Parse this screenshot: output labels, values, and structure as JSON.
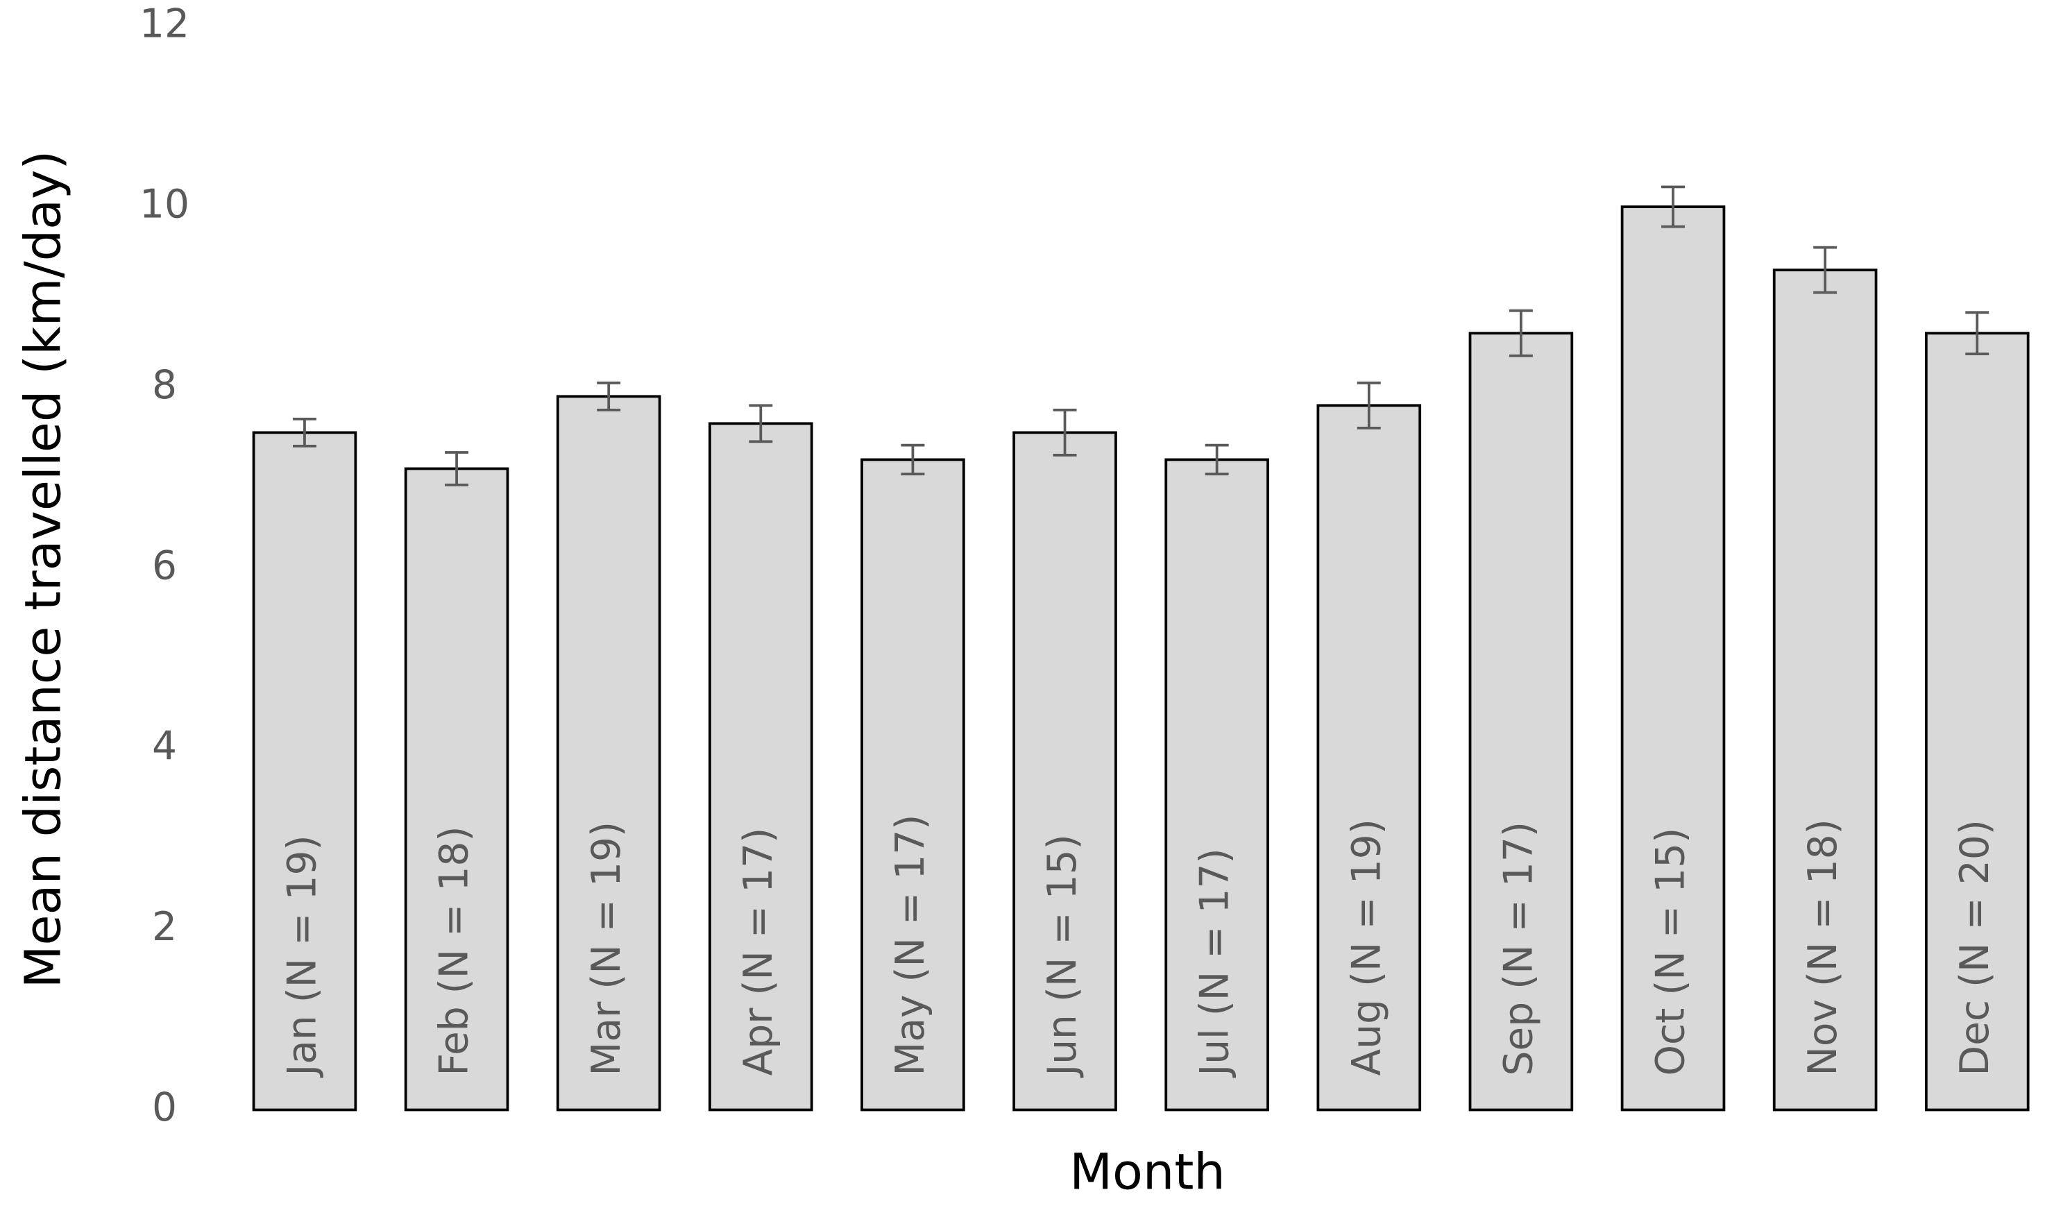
{
  "chart_data": {
    "type": "bar",
    "x_label": "Month",
    "y_label": "Mean distance travelled (km/day)",
    "categories": [
      "Jan (N = 19)",
      "Feb (N = 18)",
      "Mar (N = 19)",
      "Apr (N = 17)",
      "May (N = 17)",
      "Jun (N = 15)",
      "Jul (N = 17)",
      "Aug (N = 19)",
      "Sep (N = 17)",
      "Oct (N = 15)",
      "Nov (N = 18)",
      "Dec (N = 20)"
    ],
    "values": [
      7.5,
      7.1,
      7.9,
      7.6,
      7.2,
      7.5,
      7.2,
      7.8,
      8.6,
      10.0,
      9.3,
      8.6
    ],
    "errors": [
      0.15,
      0.18,
      0.15,
      0.2,
      0.16,
      0.25,
      0.16,
      0.25,
      0.25,
      0.22,
      0.25,
      0.23
    ],
    "color": "#d9d9d9",
    "ylim": [
      0,
      12
    ],
    "yticks": [
      0,
      2,
      4,
      6,
      8,
      10,
      12
    ],
    "grid": false
  }
}
